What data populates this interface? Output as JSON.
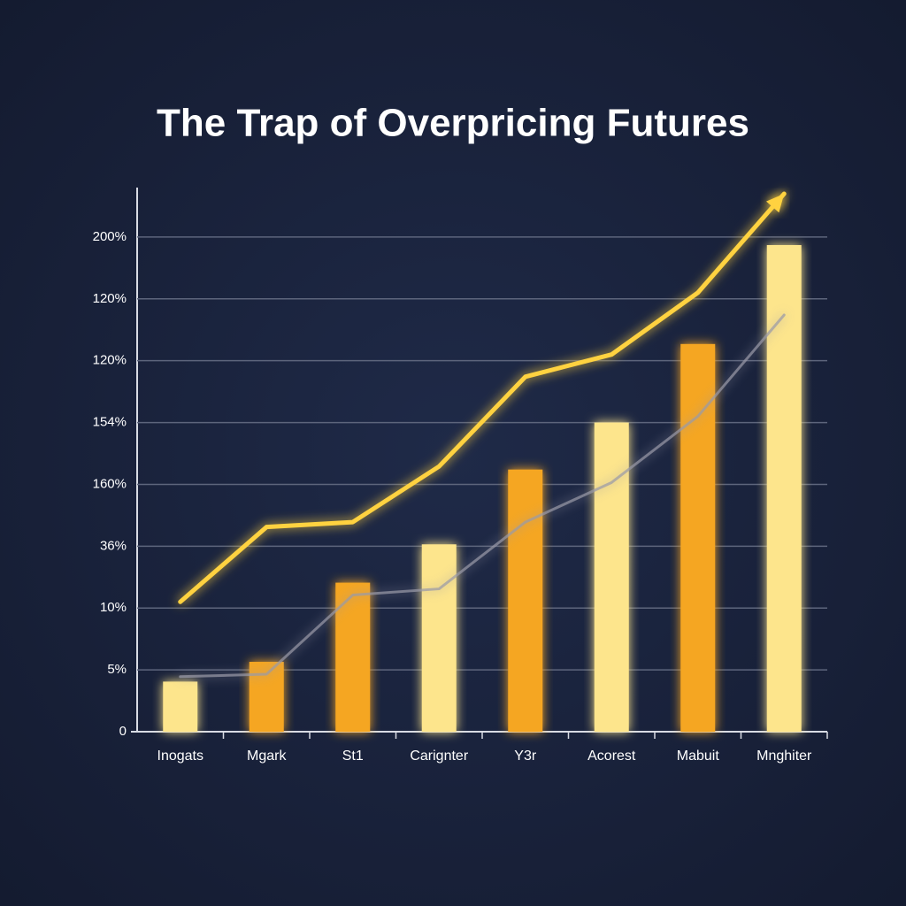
{
  "chart_data": {
    "type": "bar",
    "title": "The Trap of Overpricing Futures",
    "categories": [
      "Inogats",
      "Mgark",
      "St1",
      "Carignter",
      "Y3r",
      "Acorest",
      "Mabuit",
      "Mnghiter"
    ],
    "ylim": [
      0,
      8.8
    ],
    "yticks": [
      0,
      {
        "value": 1,
        "label": "5%"
      },
      {
        "value": 2,
        "label": "10%"
      },
      {
        "value": 3,
        "label": "36%"
      },
      {
        "value": 4,
        "label": "160%"
      },
      {
        "value": 5,
        "label": "154%"
      },
      {
        "value": 6,
        "label": "120%"
      },
      {
        "value": 7,
        "label": "120%"
      },
      {
        "value": 8,
        "label": "200%"
      }
    ],
    "grid": true,
    "series": [
      {
        "type": "bar",
        "colors": [
          "#fde58c",
          "#f5a623",
          "#f5a623",
          "#fde58c",
          "#f5a623",
          "#fde58c",
          "#f5a623",
          "#fde58c"
        ],
        "values": [
          0.81,
          1.13,
          2.41,
          3.03,
          4.24,
          5.0,
          6.27,
          7.87
        ]
      },
      {
        "type": "line",
        "color": "#9a9aa8",
        "values": [
          0.89,
          0.93,
          2.21,
          2.31,
          3.39,
          4.03,
          5.1,
          6.74
        ]
      },
      {
        "type": "line",
        "color": "#ffd23f",
        "arrow": true,
        "values": [
          2.1,
          3.31,
          3.39,
          4.29,
          5.74,
          6.1,
          7.1,
          8.7
        ]
      }
    ]
  }
}
